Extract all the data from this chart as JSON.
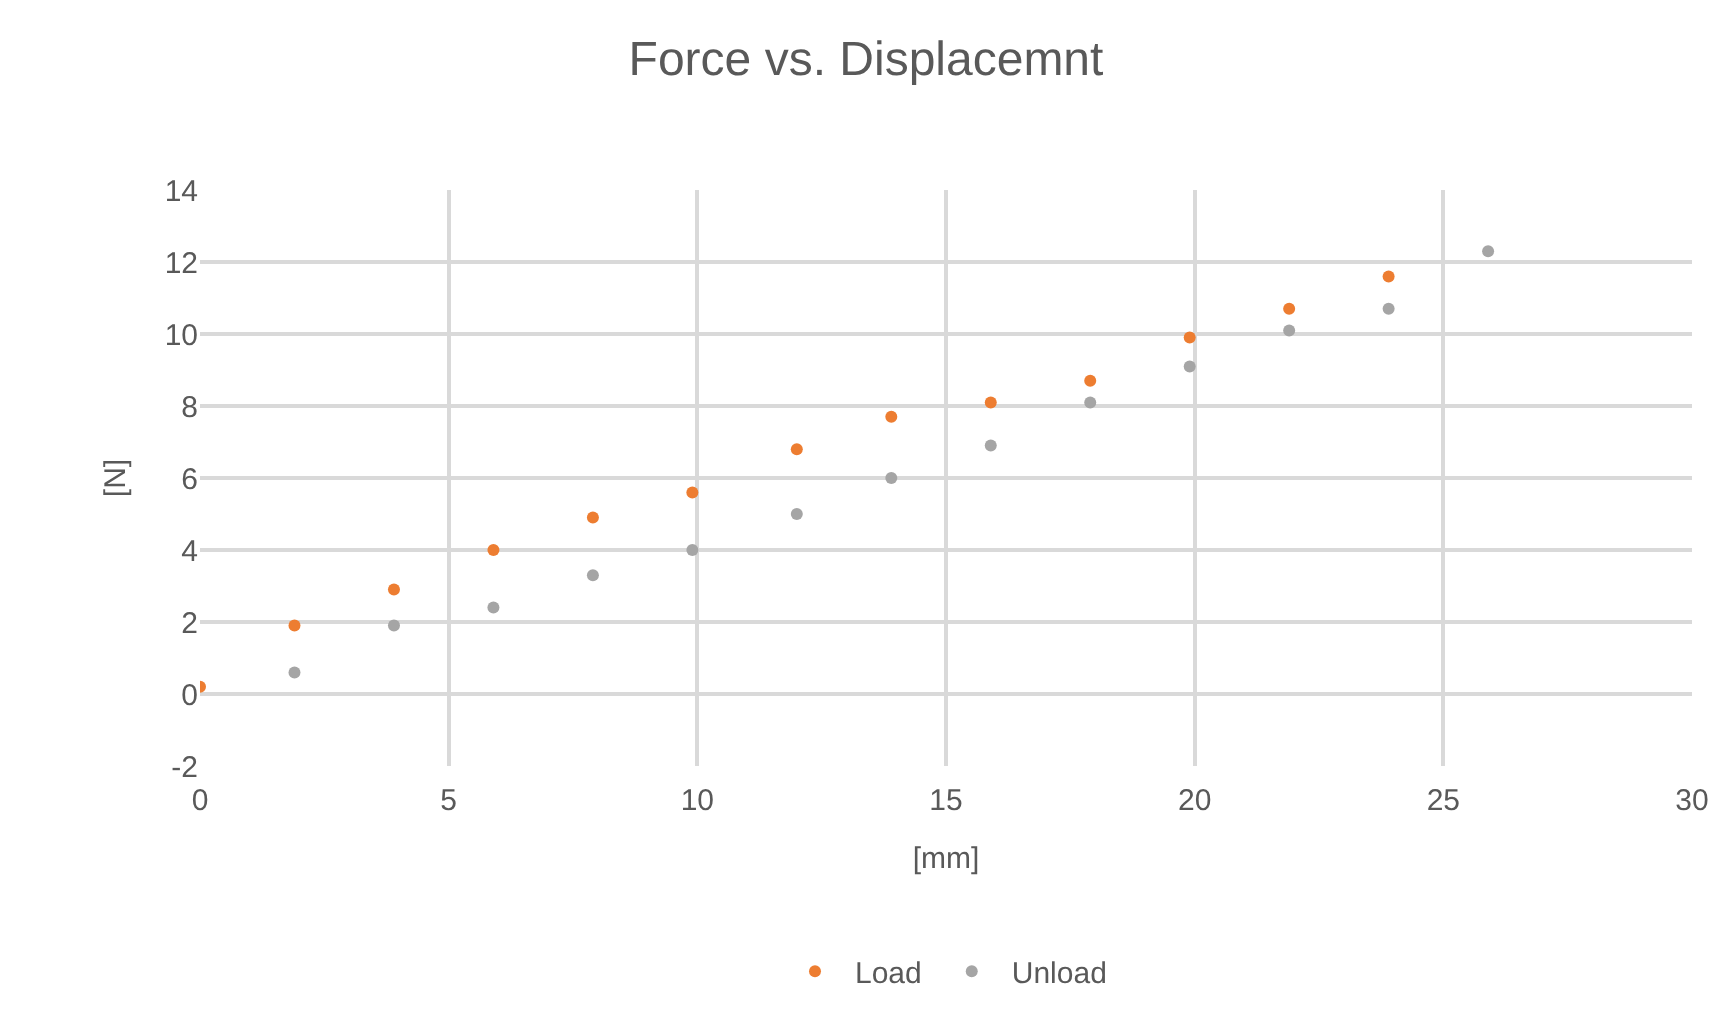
{
  "chart_data": {
    "type": "scatter",
    "title": "Force vs. Displacemnt",
    "xlabel": "[mm]",
    "ylabel": "[N]",
    "x": [
      0,
      1.9,
      3.9,
      5.9,
      7.9,
      9.9,
      12,
      13.9,
      15.9,
      17.9,
      19.9,
      21.9,
      23.9,
      25.9
    ],
    "series": [
      {
        "name": "Load",
        "color": "#ed7d31",
        "values": [
          0.2,
          1.9,
          2.9,
          4.0,
          4.9,
          5.6,
          6.8,
          7.7,
          8.1,
          8.7,
          9.9,
          10.7,
          11.6,
          null
        ]
      },
      {
        "name": "Unload",
        "color": "#a5a5a5",
        "values": [
          null,
          0.6,
          1.9,
          2.4,
          3.3,
          4.0,
          5.0,
          6.0,
          6.9,
          8.1,
          9.1,
          10.1,
          10.7,
          12.3
        ]
      }
    ],
    "xlim": [
      0,
      30
    ],
    "xticks": [
      0,
      5,
      10,
      15,
      20,
      25,
      30
    ],
    "ylim": [
      -2,
      14
    ],
    "yticks": [
      -2,
      0,
      2,
      4,
      6,
      8,
      10,
      12,
      14
    ],
    "grid": true,
    "legend": "bottom",
    "marker": "circle"
  }
}
